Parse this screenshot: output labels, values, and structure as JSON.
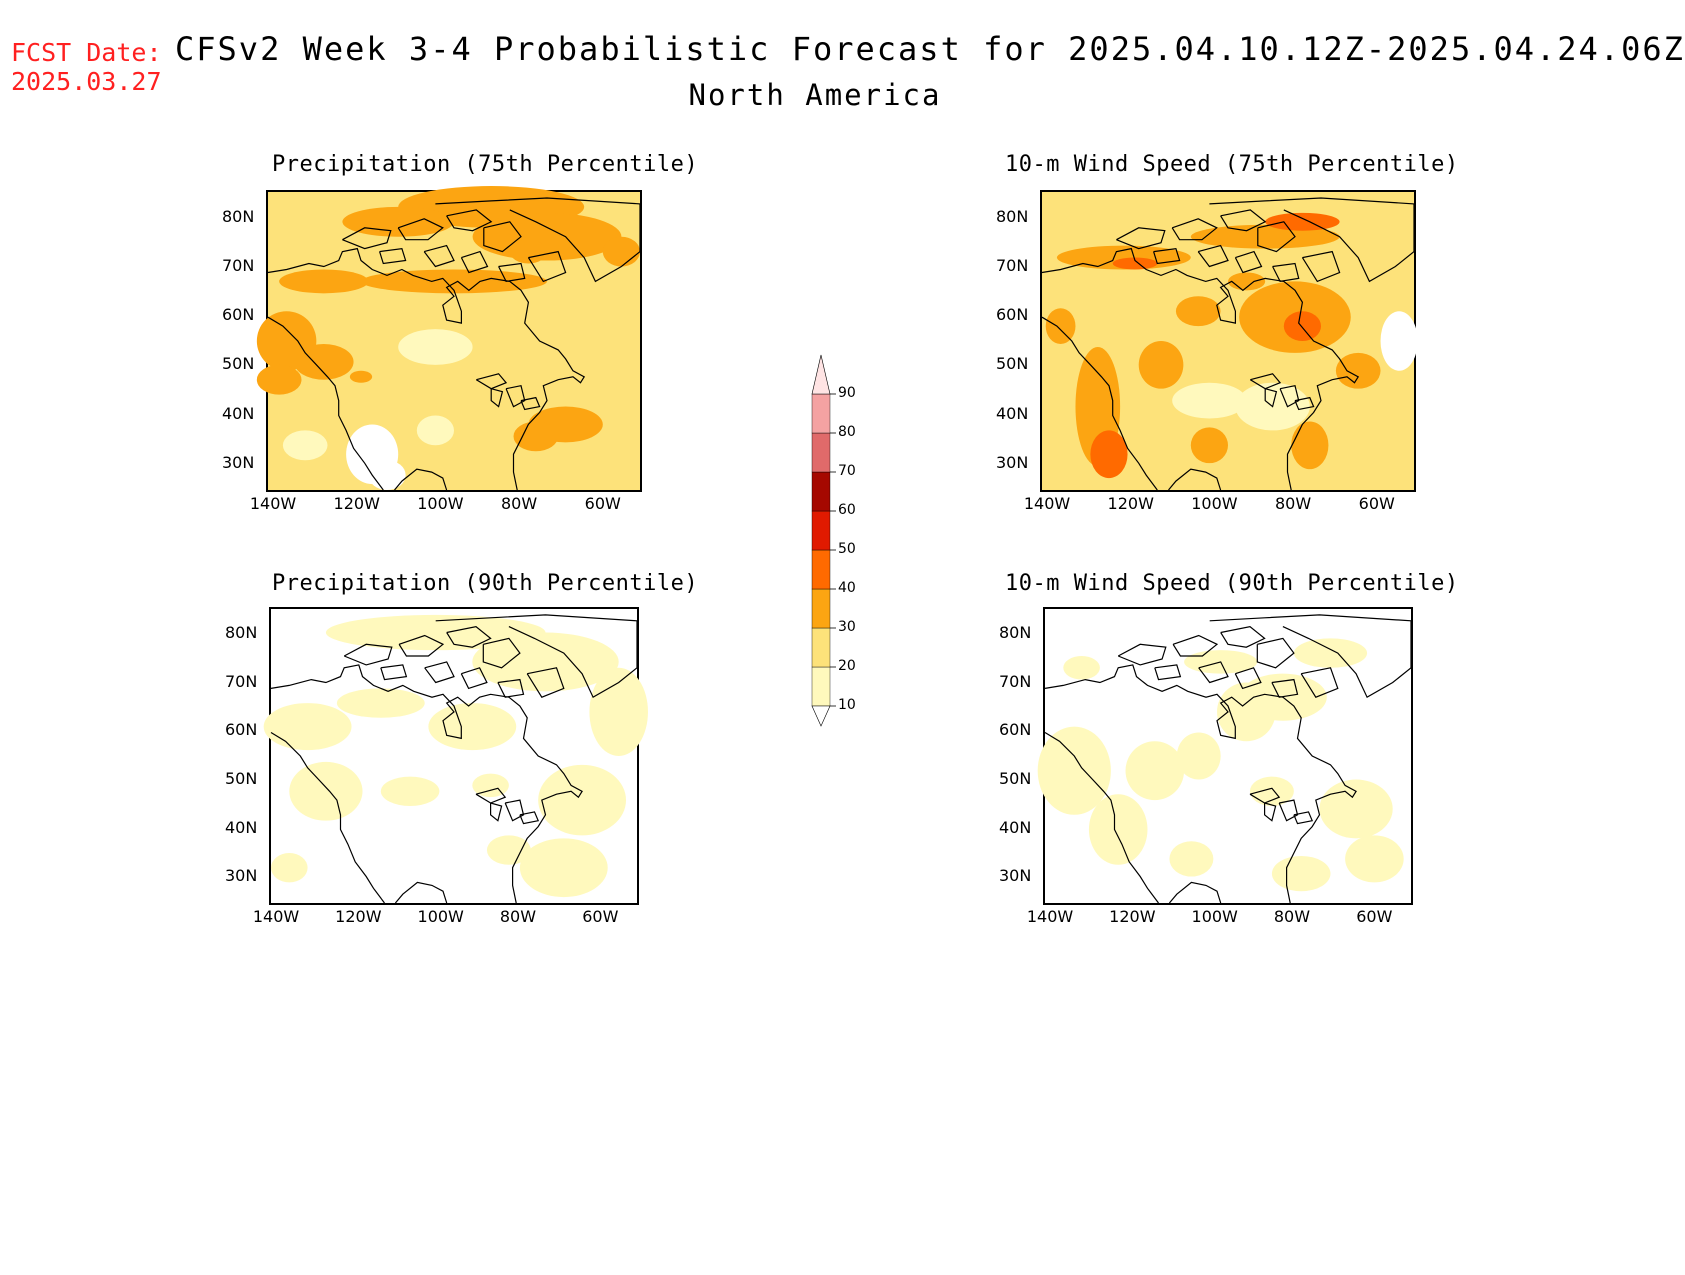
{
  "header": {
    "fcst_label": "FCST Date:",
    "fcst_date": "2025.03.27",
    "title": "CFSv2 Week 3-4 Probabilistic Forecast for 2025.04.10.12Z-2025.04.24.06Z",
    "region": "North America"
  },
  "colors": {
    "fcst_text": "#ff2020",
    "levels": [
      "#fff9bd",
      "#fde27a",
      "#fca512",
      "#ff6a00",
      "#e01a00",
      "#a50800",
      "#e06a6a",
      "#f4a2a2",
      "#ffe4e4"
    ]
  },
  "axes": {
    "lat_ticks": [
      "80N",
      "70N",
      "60N",
      "50N",
      "40N",
      "30N"
    ],
    "lon_ticks": [
      "140W",
      "120W",
      "100W",
      "80W",
      "60W"
    ]
  },
  "panels": [
    {
      "title": "Precipitation (75th Percentile)",
      "variable": "precipitation",
      "percentile": 75
    },
    {
      "title": "10-m Wind Speed (75th Percentile)",
      "variable": "10m-wind-speed",
      "percentile": 75
    },
    {
      "title": "Precipitation (90th Percentile)",
      "variable": "precipitation",
      "percentile": 90
    },
    {
      "title": "10-m Wind Speed (90th Percentile)",
      "variable": "10m-wind-speed",
      "percentile": 90
    }
  ],
  "colorbar": {
    "labels": [
      "90",
      "80",
      "70",
      "60",
      "50",
      "40",
      "30",
      "20",
      "10"
    ]
  }
}
